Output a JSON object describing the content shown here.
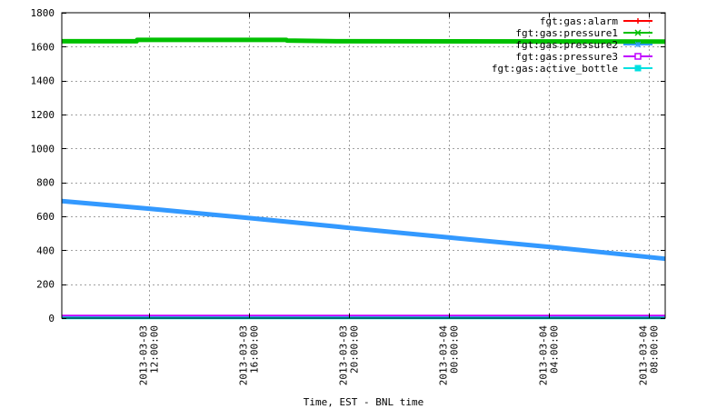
{
  "chart_data": {
    "type": "line",
    "xlabel": "Time, EST - BNL time",
    "ylabel": "",
    "ylim": [
      0,
      1800
    ],
    "yticks": [
      0,
      200,
      400,
      600,
      800,
      1000,
      1200,
      1400,
      1600,
      1800
    ],
    "xlim": [
      "2013-03-03 08:30:00",
      "2013-03-04 08:40:00"
    ],
    "xticks": [
      {
        "value": "2013-03-03 12:00:00",
        "line1": "2013-03-03",
        "line2": "12:00:00"
      },
      {
        "value": "2013-03-03 16:00:00",
        "line1": "2013-03-03",
        "line2": "16:00:00"
      },
      {
        "value": "2013-03-03 20:00:00",
        "line1": "2013-03-03",
        "line2": "20:00:00"
      },
      {
        "value": "2013-03-04 00:00:00",
        "line1": "2013-03-04",
        "line2": "00:00:00"
      },
      {
        "value": "2013-03-04 04:00:00",
        "line1": "2013-03-04",
        "line2": "04:00:00"
      },
      {
        "value": "2013-03-04 08:00:00",
        "line1": "2013-03-04",
        "line2": "08:00:00"
      }
    ],
    "grid": true,
    "legend_position": "top-right",
    "series": [
      {
        "name": "fgt:gas:alarm",
        "color": "#ff0000",
        "marker": "plus",
        "x": [
          "2013-03-03 08:30:00",
          "2013-03-03 19:30:00",
          "2013-03-03 20:00:00",
          "2013-03-04 08:40:00"
        ],
        "values": [
          0,
          0,
          0,
          0
        ]
      },
      {
        "name": "fgt:gas:pressure1",
        "color": "#00c000",
        "marker": "x",
        "x": [
          "2013-03-03 08:30:00",
          "2013-03-03 11:30:00",
          "2013-03-03 11:31:00",
          "2013-03-03 17:30:00",
          "2013-03-03 17:31:00",
          "2013-03-03 19:30:00",
          "2013-03-03 19:45:00",
          "2013-03-03 20:00:00",
          "2013-03-04 08:40:00"
        ],
        "values": [
          1632,
          1632,
          1640,
          1640,
          1636,
          1632,
          1632,
          1632,
          1630
        ]
      },
      {
        "name": "fgt:gas:pressure2",
        "color": "#3399ff",
        "marker": "star",
        "x": [
          "2013-03-03 08:30:00",
          "2013-03-03 12:00:00",
          "2013-03-03 16:00:00",
          "2013-03-03 19:30:00",
          "2013-03-03 20:00:00",
          "2013-03-04 00:00:00",
          "2013-03-04 04:00:00",
          "2013-03-04 08:40:00"
        ],
        "values": [
          690,
          645,
          590,
          540,
          532,
          475,
          420,
          350
        ]
      },
      {
        "name": "fgt:gas:pressure3",
        "color": "#c000ff",
        "marker": "square",
        "x": [
          "2013-03-03 08:30:00",
          "2013-03-03 19:30:00",
          "2013-03-03 20:00:00",
          "2013-03-04 08:40:00"
        ],
        "values": [
          12,
          12,
          12,
          12
        ]
      },
      {
        "name": "fgt:gas:active_bottle",
        "color": "#00e0e0",
        "marker": "square-filled",
        "x": [
          "2013-03-03 08:30:00",
          "2013-03-04 08:40:00"
        ],
        "values": [
          1,
          1
        ]
      }
    ]
  }
}
